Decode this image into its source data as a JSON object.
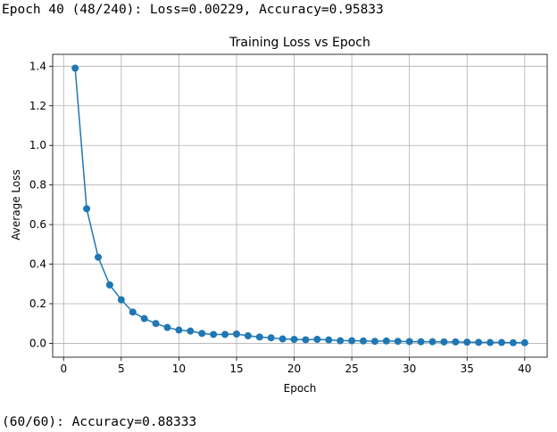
{
  "output": {
    "top_line": "Epoch 40 (48/240): Loss=0.00229, Accuracy=0.95833",
    "bottom_line": "(60/60): Accuracy=0.88333"
  },
  "chart_data": {
    "type": "line",
    "title": "Training Loss vs Epoch",
    "xlabel": "Epoch",
    "ylabel": "Average Loss",
    "xlim": [
      -0.95,
      41.95
    ],
    "ylim": [
      -0.07,
      1.46
    ],
    "xticks": [
      0,
      5,
      10,
      15,
      20,
      25,
      30,
      35,
      40
    ],
    "xtick_labels": [
      "0",
      "5",
      "10",
      "15",
      "20",
      "25",
      "30",
      "35",
      "40"
    ],
    "yticks": [
      0.0,
      0.2,
      0.4,
      0.6,
      0.8,
      1.0,
      1.2,
      1.4
    ],
    "ytick_labels": [
      "0.0",
      "0.2",
      "0.4",
      "0.6",
      "0.8",
      "1.0",
      "1.2",
      "1.4"
    ],
    "grid": true,
    "marker": "circle",
    "color": "#1f77b4",
    "x": [
      1,
      2,
      3,
      4,
      5,
      6,
      7,
      8,
      9,
      10,
      11,
      12,
      13,
      14,
      15,
      16,
      17,
      18,
      19,
      20,
      21,
      22,
      23,
      24,
      25,
      26,
      27,
      28,
      29,
      30,
      31,
      32,
      33,
      34,
      35,
      36,
      37,
      38,
      39,
      40
    ],
    "y": [
      1.39,
      0.68,
      0.435,
      0.295,
      0.22,
      0.158,
      0.125,
      0.1,
      0.08,
      0.067,
      0.062,
      0.05,
      0.045,
      0.045,
      0.047,
      0.038,
      0.032,
      0.028,
      0.022,
      0.02,
      0.018,
      0.02,
      0.017,
      0.013,
      0.013,
      0.012,
      0.01,
      0.012,
      0.01,
      0.009,
      0.008,
      0.008,
      0.007,
      0.007,
      0.006,
      0.005,
      0.004,
      0.004,
      0.003,
      0.003
    ]
  }
}
